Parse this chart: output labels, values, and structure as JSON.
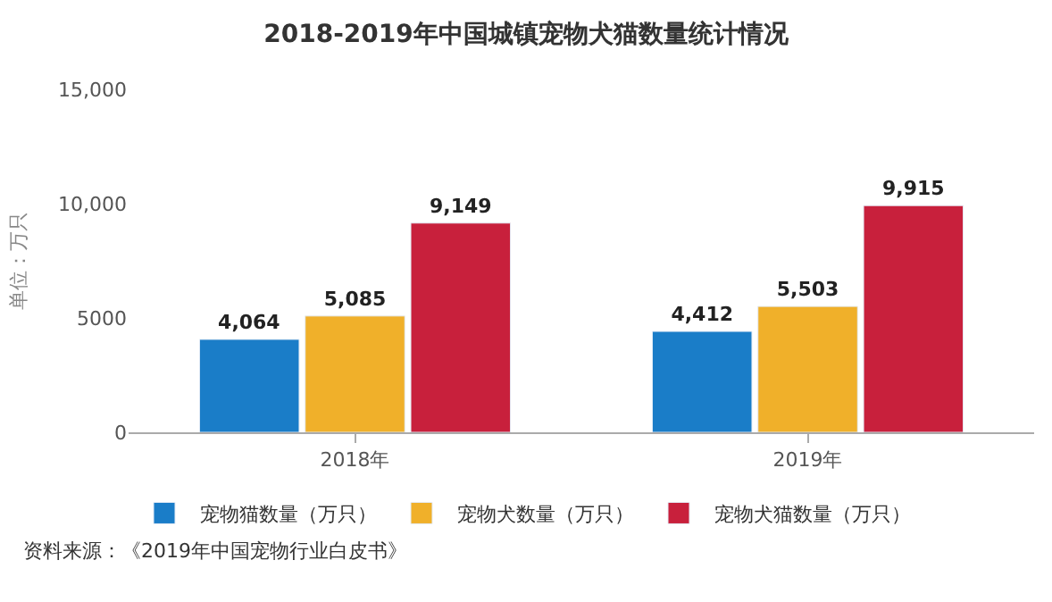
{
  "chart_data": {
    "type": "bar",
    "title": "2018-2019年中国城镇宠物犬猫数量统计情况",
    "ylabel": "单位：万只",
    "categories": [
      "2018年",
      "2019年"
    ],
    "series": [
      {
        "name": "宠物猫数量（万只）",
        "color": "#1a7dc8",
        "values": [
          4064,
          4412
        ],
        "value_labels": [
          "4,064",
          "4,412"
        ]
      },
      {
        "name": "宠物犬数量（万只）",
        "color": "#f0b02a",
        "values": [
          5085,
          5503
        ],
        "value_labels": [
          "5,085",
          "5,503"
        ]
      },
      {
        "name": "宠物犬猫数量（万只）",
        "color": "#c8203c",
        "values": [
          9149,
          9915
        ],
        "value_labels": [
          "9,149",
          "9,915"
        ]
      }
    ],
    "ylim": [
      0,
      15000
    ],
    "yticks": [
      0,
      5000,
      {
        "value": 10000,
        "label": "10,000"
      },
      {
        "value": 15000,
        "label": "15,000"
      }
    ],
    "legend": "bottom left",
    "annotations": [
      "资料来源：《2019年中国宠物行业白皮书》"
    ]
  }
}
